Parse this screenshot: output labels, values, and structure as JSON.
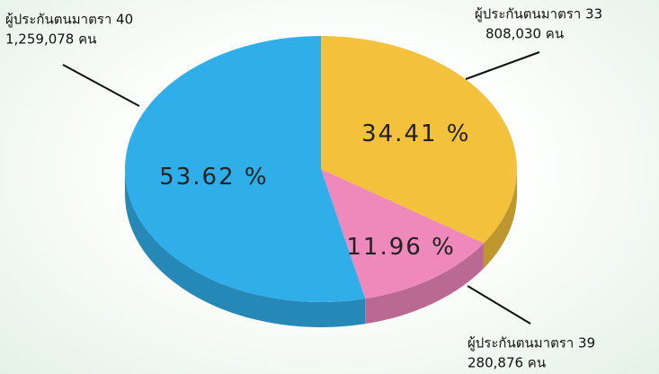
{
  "chart_data": {
    "type": "pie",
    "categories": [
      "ผู้ประกันตนมาตรา 33",
      "ผู้ประกันตนมาตรา 39",
      "ผู้ประกันตนมาตรา 40"
    ],
    "sublabels": [
      "808,030 คน",
      "280,876 คน",
      "1,259,078 คน"
    ],
    "values": [
      34.41,
      11.96,
      53.62
    ],
    "value_labels": [
      "34.41 %",
      "11.96 %",
      "53.62 %"
    ],
    "colors": [
      "#f4c13c",
      "#ef88bb",
      "#30aeea"
    ]
  }
}
